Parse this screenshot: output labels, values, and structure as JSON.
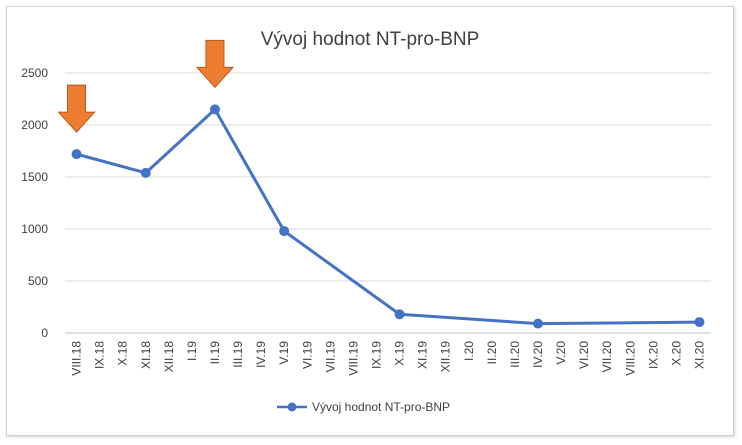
{
  "chart_data": {
    "type": "line",
    "title": "Vývoj hodnot NT-pro-BNP",
    "xlabel": "",
    "ylabel": "",
    "ylim": [
      0,
      2500
    ],
    "yticks": [
      0,
      500,
      1000,
      1500,
      2000,
      2500
    ],
    "categories": [
      "VIII.18",
      "IX.18",
      "X.18",
      "XI.18",
      "XII.18",
      "I.19",
      "II.19",
      "III.19",
      "IV.19",
      "V.19",
      "VI.19",
      "VII.19",
      "VIII.19",
      "IX.19",
      "X.19",
      "XI.19",
      "XII.19",
      "I.20",
      "II.20",
      "III.20",
      "IV.20",
      "V.20",
      "VI.20",
      "VII.20",
      "VIII.20",
      "IX.20",
      "X.20",
      "XI.20"
    ],
    "series": [
      {
        "name": "Vývoj hodnot NT-pro-BNP",
        "color": "#4472c4",
        "points": [
          {
            "x": "VIII.18",
            "y": 1720
          },
          {
            "x": "XI.18",
            "y": 1540
          },
          {
            "x": "II.19",
            "y": 2150
          },
          {
            "x": "V.19",
            "y": 980
          },
          {
            "x": "X.19",
            "y": 180
          },
          {
            "x": "IV.20",
            "y": 90
          },
          {
            "x": "XI.20",
            "y": 105
          }
        ]
      }
    ],
    "annotations": [
      {
        "type": "arrow-down",
        "x": "VIII.18",
        "color": "#ed7d31"
      },
      {
        "type": "arrow-down",
        "x": "II.19",
        "color": "#ed7d31"
      }
    ],
    "grid": true,
    "legend": "bottom"
  }
}
